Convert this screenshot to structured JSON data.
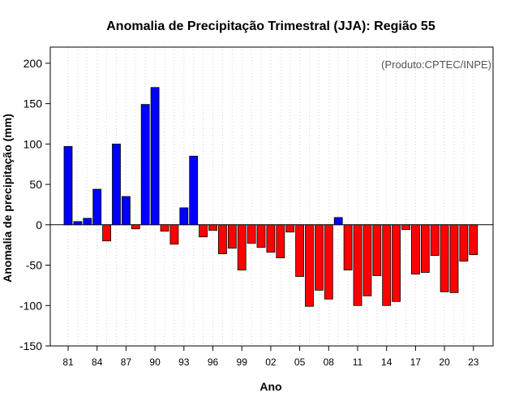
{
  "chart_data": {
    "type": "bar",
    "title": "Anomalia de Precipitação Trimestral (JJA): Região 55",
    "credit": "(Produto:CPTEC/INPE)",
    "xlabel": "Ano",
    "ylabel": "Anomalia de precipitação (mm)",
    "ylim": [
      -150,
      220
    ],
    "yticks": [
      200,
      150,
      100,
      50,
      0,
      -50,
      -100,
      -150
    ],
    "xtick_labels": [
      "81",
      "84",
      "87",
      "90",
      "93",
      "96",
      "99",
      "02",
      "05",
      "08",
      "11",
      "14",
      "17",
      "20",
      "23"
    ],
    "x_first_year": 1981,
    "x_tick_every": 3,
    "grid": true,
    "years": [
      1981,
      1982,
      1983,
      1984,
      1985,
      1986,
      1987,
      1988,
      1989,
      1990,
      1991,
      1992,
      1993,
      1994,
      1995,
      1996,
      1997,
      1998,
      1999,
      2000,
      2001,
      2002,
      2003,
      2004,
      2005,
      2006,
      2007,
      2008,
      2009,
      2010,
      2011,
      2012,
      2013,
      2014,
      2015,
      2016,
      2017,
      2018,
      2019,
      2020,
      2021,
      2022,
      2023
    ],
    "values": [
      97,
      4,
      8,
      44,
      -20,
      100,
      35,
      -5,
      149,
      170,
      -8,
      -24,
      21,
      85,
      -15,
      -7,
      -36,
      -29,
      -56,
      -23,
      -28,
      -34,
      -41,
      -9,
      -64,
      -101,
      -81,
      -92,
      9,
      -56,
      -100,
      -88,
      -63,
      -100,
      -95,
      -6,
      -61,
      -59,
      -38,
      -83,
      -84,
      -45,
      -37
    ],
    "colors": {
      "positive": "#0000FF",
      "negative": "#FF0000",
      "bar_edge": "#000000",
      "grid": "#D3D3D3",
      "credit": "#555555"
    }
  }
}
